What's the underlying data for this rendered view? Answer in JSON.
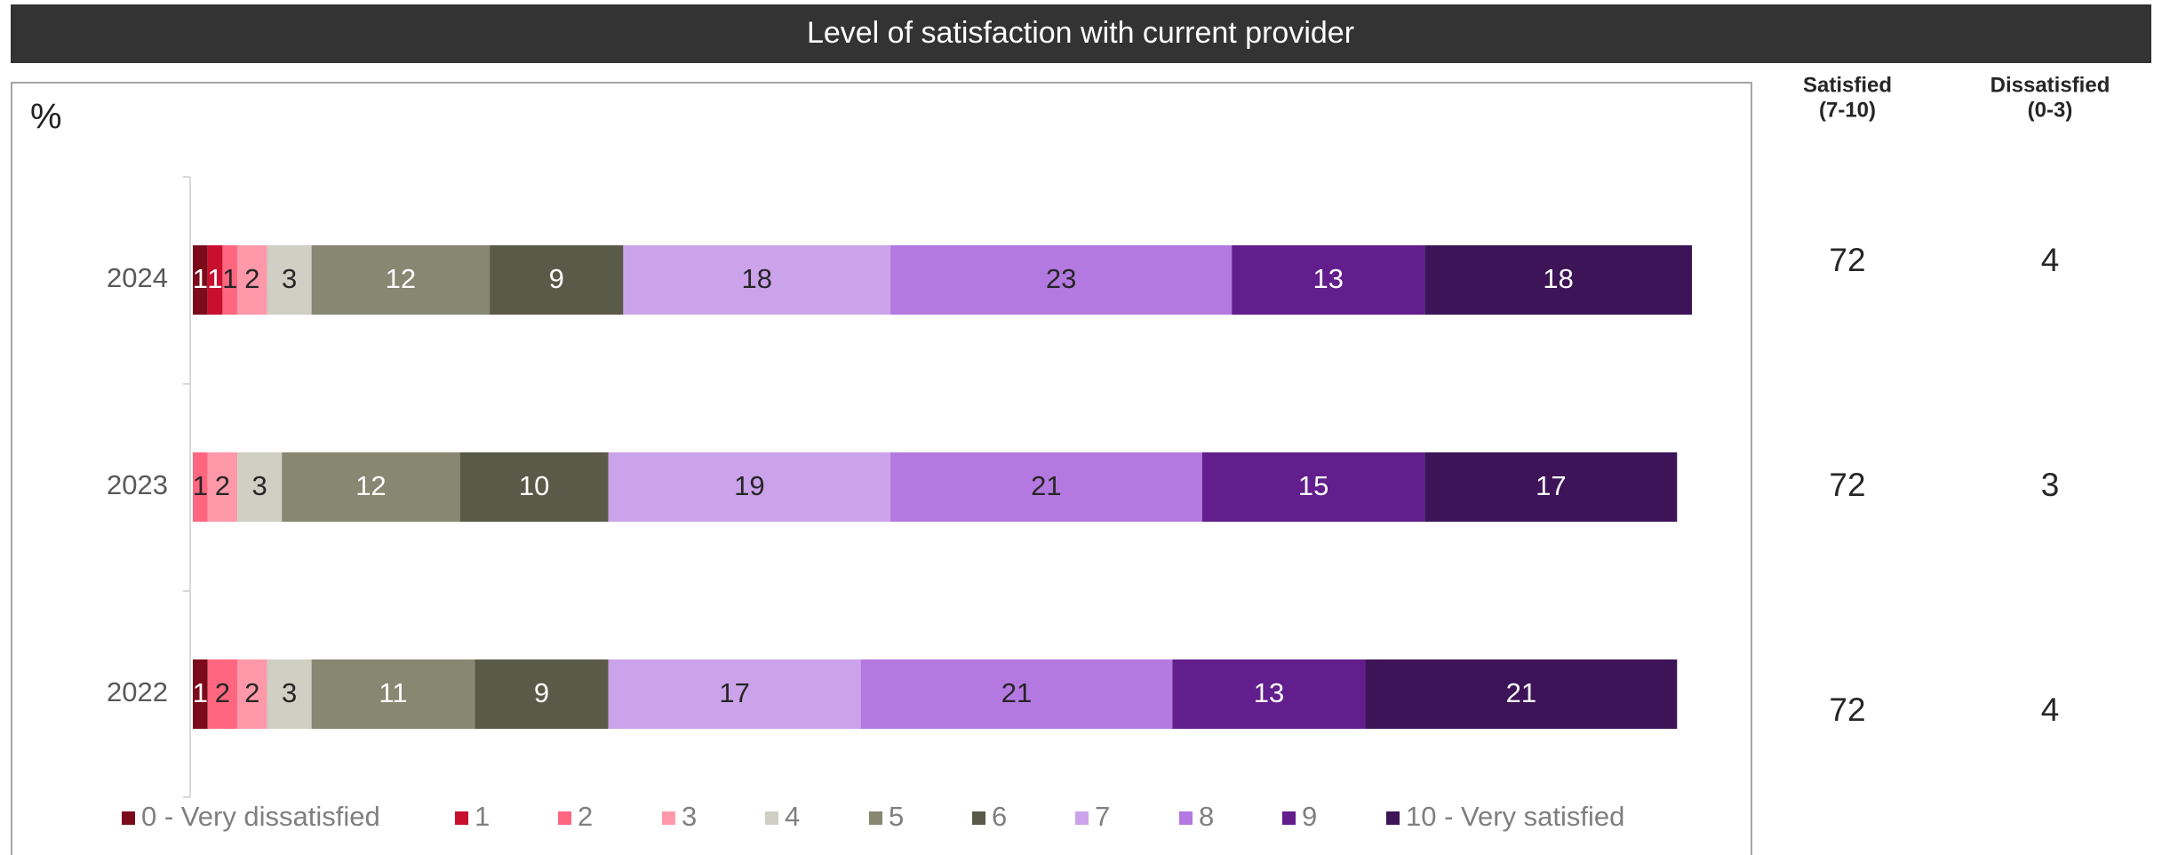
{
  "chart_data": {
    "type": "stacked-bar-horizontal",
    "title": "Level of satisfaction with current provider",
    "axis_label": "%",
    "categories": [
      "2024",
      "2023",
      "2022"
    ],
    "series": [
      {
        "name": "0 - Very dissatisfied",
        "color": "#7b0b1a",
        "values": [
          1,
          null,
          1
        ]
      },
      {
        "name": "1",
        "color": "#c8102e",
        "values": [
          1,
          null,
          null
        ]
      },
      {
        "name": "2",
        "color": "#ff6680",
        "values": [
          1,
          1,
          2
        ]
      },
      {
        "name": "3",
        "color": "#ff99aa",
        "values": [
          2,
          2,
          2
        ]
      },
      {
        "name": "4",
        "color": "#cfcfc4",
        "values": [
          3,
          3,
          3
        ]
      },
      {
        "name": "5",
        "color": "#878772",
        "values": [
          12,
          12,
          11
        ]
      },
      {
        "name": "6",
        "color": "#5a5a48",
        "values": [
          9,
          10,
          9
        ]
      },
      {
        "name": "7",
        "color": "#cba3ea",
        "values": [
          18,
          19,
          17
        ]
      },
      {
        "name": "8",
        "color": "#b479e0",
        "values": [
          23,
          21,
          21
        ]
      },
      {
        "name": "9",
        "color": "#621e8c",
        "values": [
          13,
          15,
          13
        ]
      },
      {
        "name": "10 - Very satisfied",
        "color": "#3d1458",
        "values": [
          18,
          17,
          21
        ]
      }
    ],
    "summary_columns": [
      {
        "name": [
          "Satisfied",
          "(7-10)"
        ],
        "values": [
          72,
          72,
          72
        ]
      },
      {
        "name": [
          "Dissatisfied",
          "(0-3)"
        ],
        "values": [
          4,
          3,
          4
        ]
      }
    ]
  }
}
